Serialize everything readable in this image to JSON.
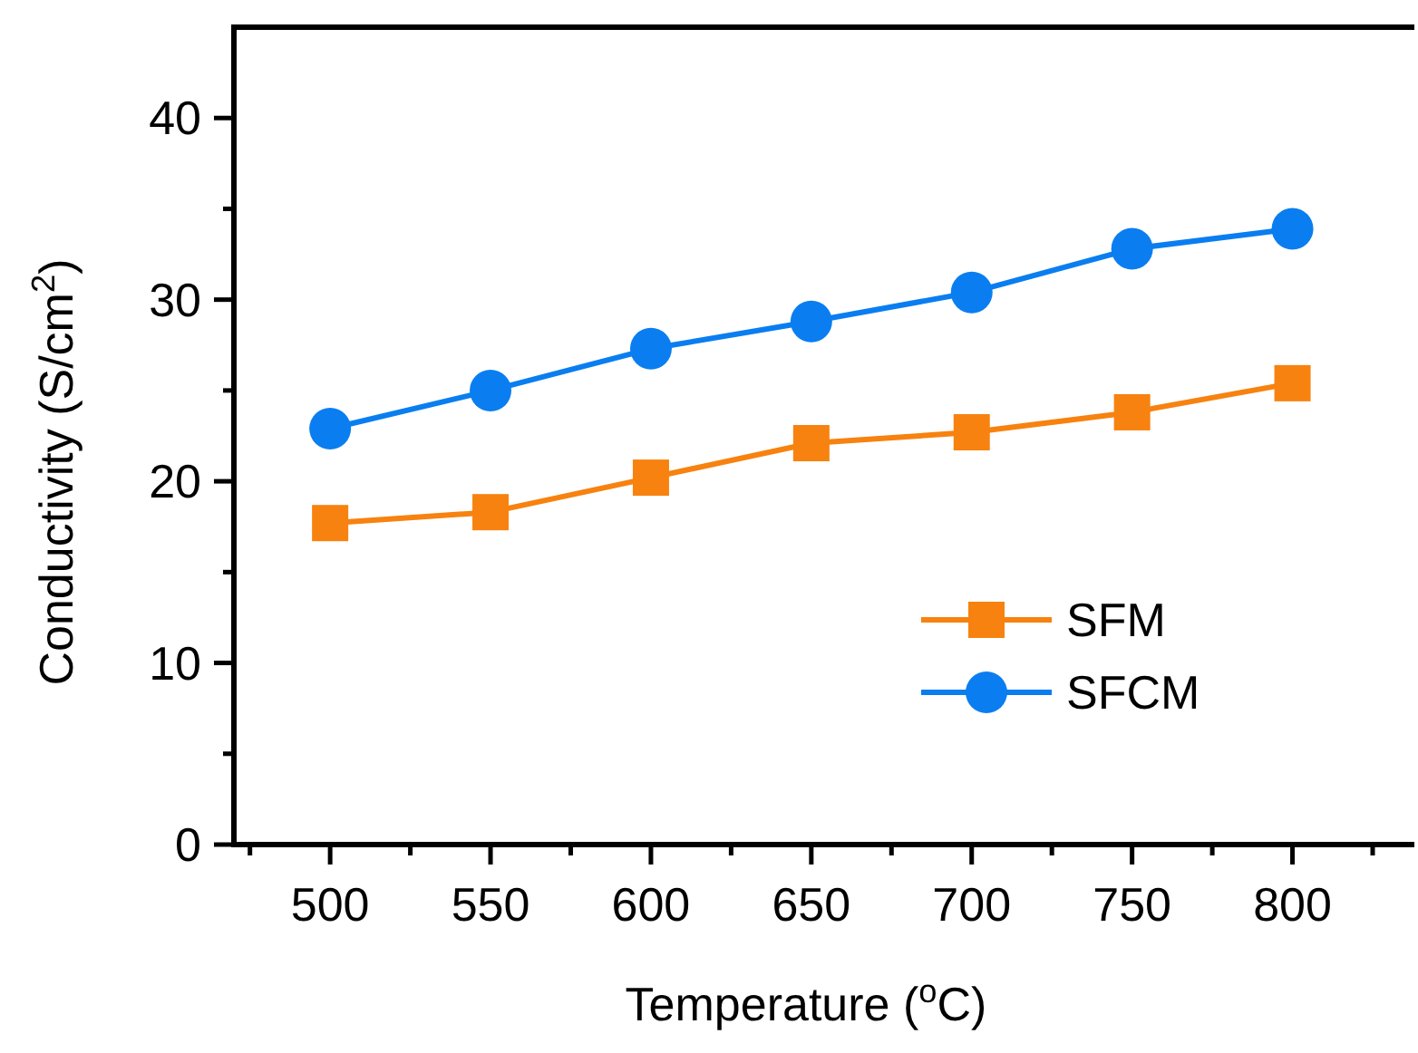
{
  "chart_data": {
    "type": "line",
    "xlabel": "Temperature ($^{o}$C)",
    "ylabel": "Conductivity (S/cm$^{2}$)",
    "x": [
      500,
      550,
      600,
      650,
      700,
      750,
      800
    ],
    "series": [
      {
        "name": "SFM",
        "color": "#f7820f",
        "marker": "square",
        "values": [
          17.7,
          18.3,
          20.2,
          22.1,
          22.7,
          23.8,
          25.4
        ]
      },
      {
        "name": "SFCM",
        "color": "#0a7ef0",
        "marker": "circle",
        "values": [
          22.9,
          25.0,
          27.3,
          28.8,
          30.4,
          32.8,
          33.9
        ]
      }
    ],
    "xlim": [
      470,
      838
    ],
    "ylim": [
      0,
      45
    ],
    "xticks": [
      {
        "value": 475,
        "label": null
      },
      500,
      {
        "value": 525,
        "label": null
      },
      550,
      {
        "value": 575,
        "label": null
      },
      600,
      {
        "value": 625,
        "label": null
      },
      650,
      {
        "value": 675,
        "label": null
      },
      700,
      {
        "value": 725,
        "label": null
      },
      750,
      {
        "value": 775,
        "label": null
      },
      800,
      {
        "value": 825,
        "label": null
      }
    ],
    "yticks": [
      0,
      {
        "value": 5,
        "label": null
      },
      10,
      {
        "value": 15,
        "label": null
      },
      20,
      {
        "value": 25,
        "label": null
      },
      30,
      {
        "value": 35,
        "label": null
      },
      40
    ],
    "legend": "bottom right",
    "grid": false
  }
}
